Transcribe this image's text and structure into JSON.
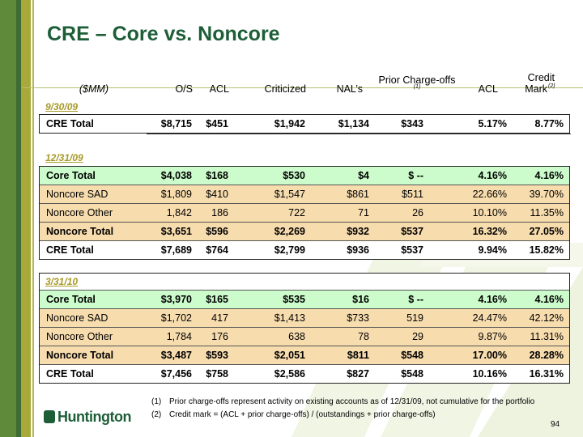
{
  "title": "CRE – Core vs. Noncore",
  "columns": {
    "unit": "($MM)",
    "os": "O/S",
    "acl": "ACL",
    "criticized": "Criticized",
    "nals": "NAL’s",
    "pco": "Prior Charge-offs",
    "pco_note": "(1)",
    "acl_pct": "ACL",
    "cm_line1": "Credit",
    "cm_line2": "Mark",
    "cm_note": "(2)"
  },
  "sections": [
    {
      "period": "9/30/09",
      "rows": [
        {
          "label": "CRE Total",
          "type": "total",
          "v": [
            "$8,715",
            "$451",
            "$1,942",
            "$1,134",
            "$343",
            "5.17%",
            "8.77%"
          ]
        }
      ]
    },
    {
      "period": "12/31/09",
      "rows": [
        {
          "label": "Core Total",
          "type": "core",
          "v": [
            "$4,038",
            "$168",
            "$530",
            "$4",
            "$ --",
            "4.16%",
            "4.16%"
          ]
        },
        {
          "label": "Noncore SAD",
          "type": "nc",
          "v": [
            "$1,809",
            "$410",
            "$1,547",
            "$861",
            "$511",
            "22.66%",
            "39.70%"
          ]
        },
        {
          "label": "Noncore Other",
          "type": "nc",
          "v": [
            "1,842",
            "186",
            "722",
            "71",
            "26",
            "10.10%",
            "11.35%"
          ]
        },
        {
          "label": "Noncore Total",
          "type": "nct",
          "v": [
            "$3,651",
            "$596",
            "$2,269",
            "$932",
            "$537",
            "16.32%",
            "27.05%"
          ]
        },
        {
          "label": "CRE Total",
          "type": "total",
          "v": [
            "$7,689",
            "$764",
            "$2,799",
            "$936",
            "$537",
            "9.94%",
            "15.82%"
          ]
        }
      ]
    },
    {
      "period": "3/31/10",
      "rows": [
        {
          "label": "Core Total",
          "type": "core",
          "v": [
            "$3,970",
            "$165",
            "$535",
            "$16",
            "$ --",
            "4.16%",
            "4.16%"
          ]
        },
        {
          "label": "Noncore SAD",
          "type": "nc",
          "v": [
            "$1,702",
            "417",
            "$1,413",
            "$733",
            "519",
            "24.47%",
            "42.12%"
          ]
        },
        {
          "label": "Noncore Other",
          "type": "nc",
          "v": [
            "1,784",
            "176",
            "638",
            "78",
            "29",
            "9.87%",
            "11.31%"
          ]
        },
        {
          "label": "Noncore Total",
          "type": "nct",
          "v": [
            "$3,487",
            "$593",
            "$2,051",
            "$811",
            "$548",
            "17.00%",
            "28.28%"
          ]
        },
        {
          "label": "CRE Total",
          "type": "total",
          "v": [
            "$7,456",
            "$758",
            "$2,586",
            "$827",
            "$548",
            "10.16%",
            "16.31%"
          ]
        }
      ]
    }
  ],
  "footnotes": [
    {
      "num": "(1)",
      "text": "Prior charge-offs represent activity on existing accounts as of 12/31/09, not cumulative for the portfolio"
    },
    {
      "num": "(2)",
      "text": "Credit mark = (ACL + prior charge-offs) / (outstandings + prior charge-offs)"
    }
  ],
  "logo": "Huntington",
  "page_number": "94"
}
